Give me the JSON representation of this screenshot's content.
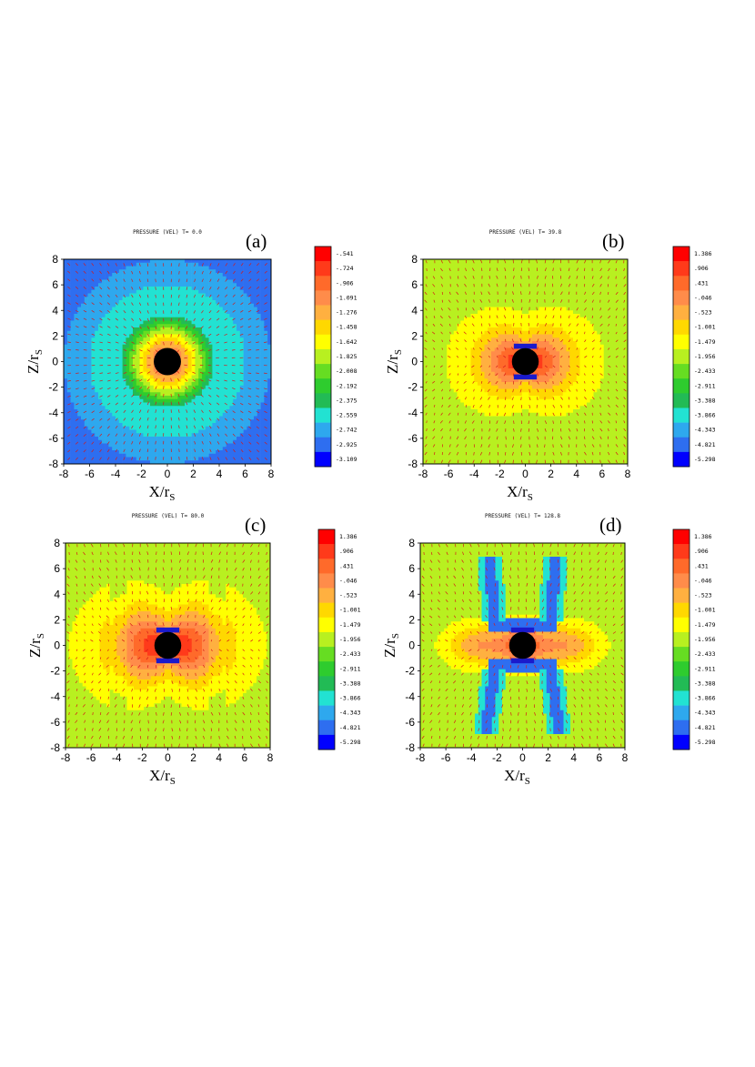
{
  "chart_data": [
    {
      "type": "heatmap",
      "panel_label": "(a)",
      "title": "PRESSURE (VEL)  T=    0.0",
      "xlabel": "X/r",
      "ylabel": "Z/r",
      "label_subscript": "S",
      "xlim": [
        -8,
        8
      ],
      "ylim": [
        -8,
        8
      ],
      "xticks": [
        "-8",
        "-6",
        "-4",
        "-2",
        "0",
        "2",
        "4",
        "6",
        "8"
      ],
      "yticks": [
        "-8",
        "-6",
        "-4",
        "-2",
        "0",
        "2",
        "4",
        "6",
        "8"
      ],
      "colorbar": {
        "levels": [
          "-.541",
          "-.724",
          "-.906",
          "-1.091",
          "-1.276",
          "-1.458",
          "-1.642",
          "-1.825",
          "-2.008",
          "-2.192",
          "-2.375",
          "-2.559",
          "-2.742",
          "-2.925",
          "-3.109"
        ],
        "colors": [
          "#ff0000",
          "#ff3a1a",
          "#ff6a2a",
          "#ff8c4a",
          "#ffb040",
          "#ffd800",
          "#ffff00",
          "#b8f020",
          "#66dd22",
          "#2ecc2e",
          "#22bb55",
          "#22e2d2",
          "#2ea8ee",
          "#2e6ef0",
          "#0000ff"
        ]
      },
      "field_pattern": "radial-infall",
      "vector_field": "radial-inward"
    },
    {
      "type": "heatmap",
      "panel_label": "(b)",
      "title": "PRESSURE (VEL)  T=   39.8",
      "xlabel": "X/r",
      "ylabel": "Z/r",
      "label_subscript": "S",
      "xlim": [
        -8,
        8
      ],
      "ylim": [
        -8,
        8
      ],
      "xticks": [
        "-8",
        "-6",
        "-4",
        "-2",
        "0",
        "2",
        "4",
        "6",
        "8"
      ],
      "yticks": [
        "-8",
        "-6",
        "-4",
        "-2",
        "0",
        "2",
        "4",
        "6",
        "8"
      ],
      "colorbar": {
        "levels": [
          "1.386",
          ".906",
          ".431",
          "-.046",
          "-.523",
          "-1.001",
          "-1.479",
          "-1.956",
          "-2.433",
          "-2.911",
          "-3.388",
          "-3.866",
          "-4.343",
          "-4.821",
          "-5.298"
        ],
        "colors": [
          "#ff0000",
          "#ff3a1a",
          "#ff6a2a",
          "#ff8c4a",
          "#ffb040",
          "#ffd800",
          "#ffff00",
          "#b8f020",
          "#66dd22",
          "#2ecc2e",
          "#22bb55",
          "#22e2d2",
          "#2ea8ee",
          "#2e6ef0",
          "#0000ff"
        ]
      },
      "field_pattern": "equatorial-bulge",
      "vector_field": "outflow"
    },
    {
      "type": "heatmap",
      "panel_label": "(c)",
      "title": "PRESSURE (VEL)  T=   80.0",
      "xlabel": "X/r",
      "ylabel": "Z/r",
      "label_subscript": "S",
      "xlim": [
        -8,
        8
      ],
      "ylim": [
        -8,
        8
      ],
      "xticks": [
        "-8",
        "-6",
        "-4",
        "-2",
        "0",
        "2",
        "4",
        "6",
        "8"
      ],
      "yticks": [
        "-8",
        "-6",
        "-4",
        "-2",
        "0",
        "2",
        "4",
        "6",
        "8"
      ],
      "colorbar": {
        "levels": [
          "1.386",
          ".906",
          ".431",
          "-.046",
          "-.523",
          "-1.001",
          "-1.479",
          "-1.956",
          "-2.433",
          "-2.911",
          "-3.388",
          "-3.866",
          "-4.343",
          "-4.821",
          "-5.298"
        ],
        "colors": [
          "#ff0000",
          "#ff3a1a",
          "#ff6a2a",
          "#ff8c4a",
          "#ffb040",
          "#ffd800",
          "#ffff00",
          "#b8f020",
          "#66dd22",
          "#2ecc2e",
          "#22bb55",
          "#22e2d2",
          "#2ea8ee",
          "#2e6ef0",
          "#0000ff"
        ]
      },
      "field_pattern": "equatorial-bulge-wide",
      "vector_field": "outflow"
    },
    {
      "type": "heatmap",
      "panel_label": "(d)",
      "title": "PRESSURE (VEL)  T=  128.8",
      "xlabel": "X/r",
      "ylabel": "Z/r",
      "label_subscript": "S",
      "xlim": [
        -8,
        8
      ],
      "ylim": [
        -8,
        8
      ],
      "xticks": [
        "-8",
        "-6",
        "-4",
        "-2",
        "0",
        "2",
        "4",
        "6",
        "8"
      ],
      "yticks": [
        "-8",
        "-6",
        "-4",
        "-2",
        "0",
        "2",
        "4",
        "6",
        "8"
      ],
      "colorbar": {
        "levels": [
          "1.386",
          ".906",
          ".431",
          "-.046",
          "-.523",
          "-1.001",
          "-1.479",
          "-1.956",
          "-2.433",
          "-2.911",
          "-3.388",
          "-3.866",
          "-4.343",
          "-4.821",
          "-5.298"
        ],
        "colors": [
          "#ff0000",
          "#ff3a1a",
          "#ff6a2a",
          "#ff8c4a",
          "#ffb040",
          "#ffd800",
          "#ffff00",
          "#b8f020",
          "#66dd22",
          "#2ecc2e",
          "#22bb55",
          "#22e2d2",
          "#2ea8ee",
          "#2e6ef0",
          "#0000ff"
        ]
      },
      "field_pattern": "x-shaped-shocks",
      "vector_field": "outflow"
    }
  ]
}
